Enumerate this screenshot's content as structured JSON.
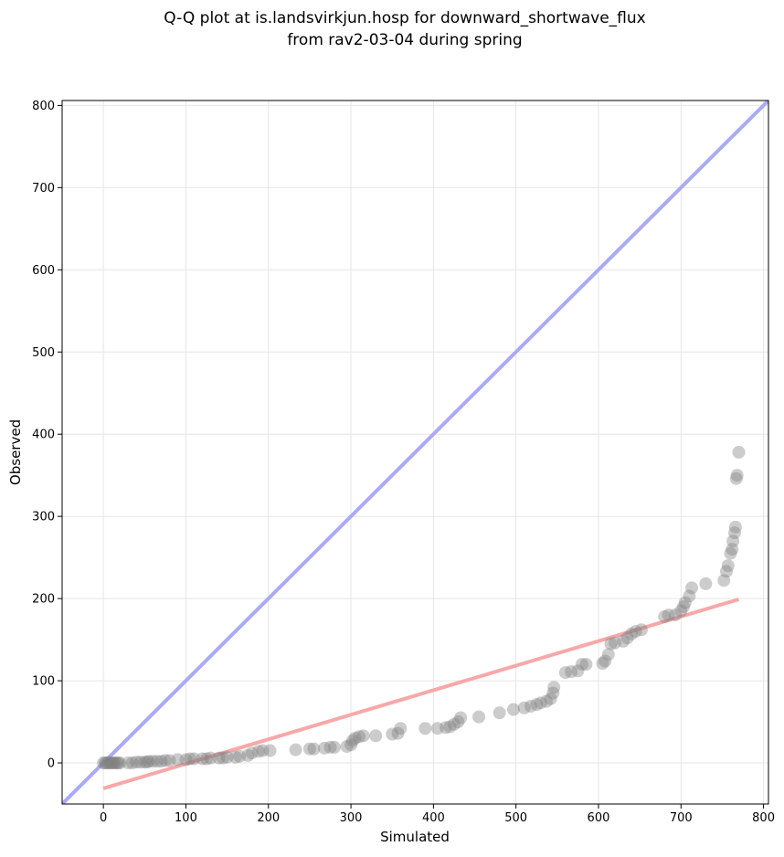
{
  "chart_data": {
    "type": "scatter",
    "title": "Q-Q plot at is.landsvirkjun.hosp for downward_shortwave_flux",
    "subtitle": "from rav2-03-04 during spring",
    "xlabel": "Simulated",
    "ylabel": "Observed",
    "xlim": [
      -50,
      806
    ],
    "ylim": [
      -50,
      806
    ],
    "xticks": [
      0,
      100,
      200,
      300,
      400,
      500,
      600,
      700,
      800
    ],
    "yticks": [
      0,
      100,
      200,
      300,
      400,
      500,
      600,
      700,
      800
    ],
    "grid": true,
    "series": [
      {
        "color": "#808080",
        "x": [
          0,
          2,
          4,
          6,
          8,
          10,
          12,
          14,
          16,
          18,
          20,
          30,
          35,
          40,
          45,
          50,
          53,
          55,
          60,
          65,
          70,
          75,
          80,
          90,
          100,
          105,
          110,
          120,
          125,
          130,
          140,
          145,
          150,
          160,
          165,
          175,
          180,
          188,
          193,
          202,
          233,
          250,
          255,
          268,
          275,
          280,
          295,
          300,
          302,
          305,
          310,
          315,
          330,
          350,
          357,
          360,
          390,
          405,
          415,
          420,
          425,
          430,
          433,
          455,
          480,
          497,
          510,
          518,
          525,
          530,
          537,
          542,
          545,
          546,
          560,
          567,
          575,
          580,
          585,
          605,
          608,
          612,
          615,
          620,
          630,
          635,
          640,
          645,
          652,
          680,
          685,
          693,
          700,
          703,
          705,
          710,
          713,
          730,
          752,
          755,
          757,
          760,
          762,
          763,
          765,
          766,
          767,
          768,
          770
        ],
        "values": [
          0,
          0,
          0,
          0,
          0,
          0,
          0,
          0,
          0,
          0,
          0,
          0,
          0,
          1,
          1,
          1,
          1,
          2,
          2,
          2,
          2,
          3,
          3,
          4,
          4,
          5,
          5,
          5,
          5,
          6,
          6,
          6,
          7,
          7,
          8,
          9,
          12,
          14,
          15,
          15,
          16,
          17,
          17,
          18,
          19,
          19,
          20,
          22,
          27,
          30,
          32,
          33,
          33,
          35,
          36,
          42,
          42,
          42,
          43,
          44,
          47,
          50,
          55,
          56,
          61,
          65,
          67,
          69,
          71,
          73,
          75,
          78,
          85,
          92,
          110,
          111,
          112,
          120,
          120,
          121,
          124,
          132,
          145,
          146,
          148,
          152,
          157,
          160,
          162,
          178,
          180,
          180,
          185,
          190,
          195,
          203,
          213,
          218,
          222,
          233,
          240,
          255,
          260,
          270,
          280,
          287,
          346,
          350,
          378
        ]
      }
    ],
    "lines": [
      {
        "color": "#aaaaf5",
        "x": [
          -50,
          806
        ],
        "values": [
          -50,
          806
        ]
      },
      {
        "color": "#f7a8a8",
        "x": [
          0,
          770
        ],
        "values": [
          -31,
          199
        ]
      }
    ]
  }
}
